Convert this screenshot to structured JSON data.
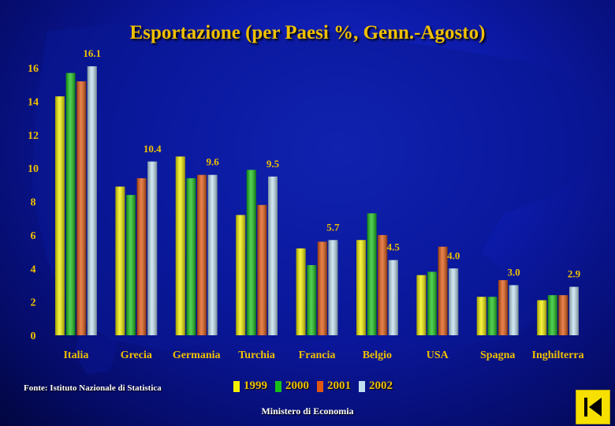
{
  "title": "Esportazione (per Paesi %, Genn.-Agosto)",
  "source": "Fonte: Istituto Nazionale di Statistica",
  "footer": "Ministero di Economia",
  "nav": {
    "icon": "first-page-icon"
  },
  "colors": {
    "title": "#f0c000",
    "value_labels": "#f0c000",
    "y_ticks": "#f0c000",
    "category_labels": "#f0c000"
  },
  "chart_data": {
    "type": "bar",
    "categories": [
      "Italia",
      "Grecia",
      "Germania",
      "Turchia",
      "Francia",
      "Belgio",
      "USA",
      "Spagna",
      "Inghilterra"
    ],
    "series": [
      {
        "name": "1999",
        "color": "#f5f000",
        "values": [
          14.3,
          8.9,
          10.7,
          7.2,
          5.2,
          5.7,
          3.6,
          2.3,
          2.1
        ]
      },
      {
        "name": "2000",
        "color": "#18c018",
        "values": [
          15.7,
          8.4,
          9.4,
          9.9,
          4.2,
          7.3,
          3.8,
          2.3,
          2.4
        ]
      },
      {
        "name": "2001",
        "color": "#e05810",
        "values": [
          15.2,
          9.4,
          9.6,
          7.8,
          5.6,
          6.0,
          5.3,
          3.3,
          2.4
        ]
      },
      {
        "name": "2002",
        "color": "#c0e0f0",
        "values": [
          16.1,
          10.4,
          9.6,
          9.5,
          5.7,
          4.5,
          4.0,
          3.0,
          2.9
        ]
      }
    ],
    "value_labels": [
      "16.1",
      "10.4",
      "9.6",
      "9.5",
      "5.7",
      "4.5",
      "4.0",
      "3.0",
      "2.9"
    ],
    "yticks": [
      "0",
      "2",
      "4",
      "6",
      "8",
      "10",
      "12",
      "14",
      "16"
    ],
    "ylim": [
      0,
      17
    ],
    "legend_position": "bottom",
    "grid": false
  }
}
